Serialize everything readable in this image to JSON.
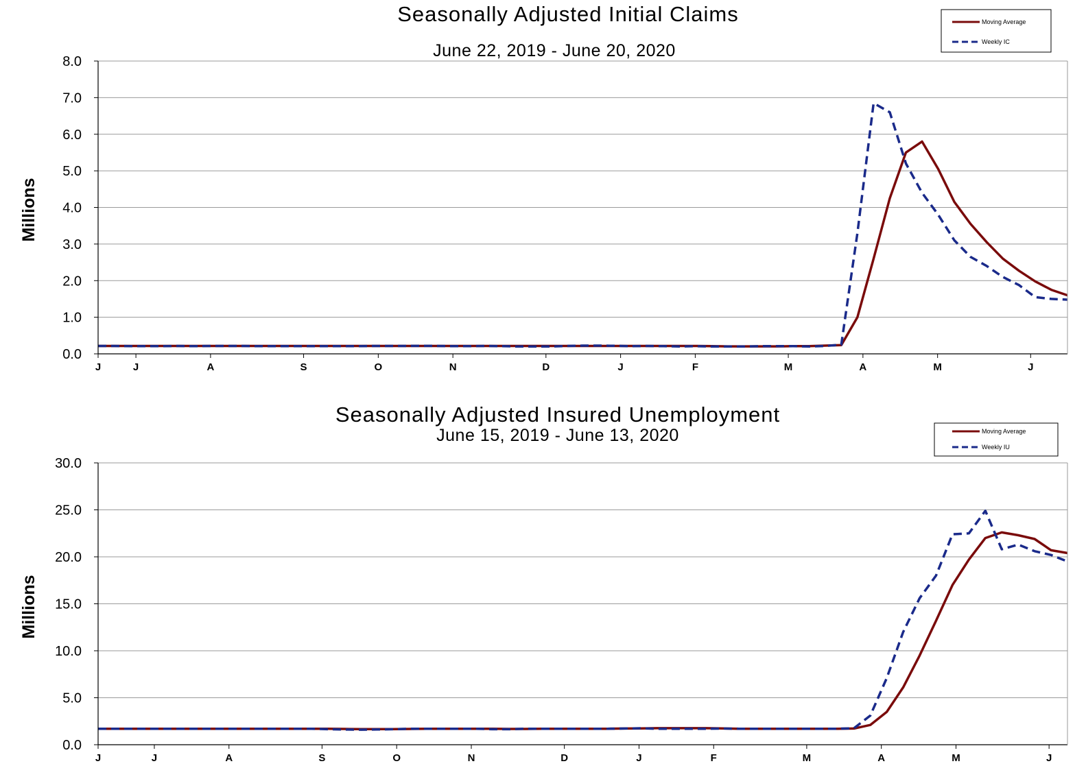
{
  "colors": {
    "moving_average": "#7a0b0b",
    "weekly": "#1a2a8a",
    "grid": "#9a9a9a"
  },
  "chart_data": [
    {
      "type": "line",
      "title": "Seasonally Adjusted Initial Claims",
      "subtitle": "June 22, 2019 - June 20, 2020",
      "ylabel": "Millions",
      "ylim": [
        0,
        8
      ],
      "yticks": [
        "0.0",
        "1.0",
        "2.0",
        "3.0",
        "4.0",
        "5.0",
        "6.0",
        "7.0",
        "8.0"
      ],
      "xtick_labels": [
        "J",
        "J",
        "A",
        "S",
        "O",
        "N",
        "D",
        "J",
        "F",
        "M",
        "A",
        "M",
        "J"
      ],
      "grid": true,
      "legend_position": "top-right",
      "series": [
        {
          "name": "Moving Average",
          "style": "solid",
          "values": [
            0.215,
            0.215,
            0.215,
            0.215,
            0.215,
            0.215,
            0.215,
            0.215,
            0.215,
            0.215,
            0.215,
            0.215,
            0.215,
            0.215,
            0.215,
            0.215,
            0.215,
            0.215,
            0.215,
            0.215,
            0.215,
            0.215,
            0.215,
            0.215,
            0.215,
            0.215,
            0.215,
            0.215,
            0.215,
            0.215,
            0.215,
            0.215,
            0.215,
            0.215,
            0.215,
            0.215,
            0.215,
            0.215,
            0.21,
            0.205,
            0.205,
            0.205,
            0.205,
            0.21,
            0.21,
            0.225,
            0.24,
            1.0,
            2.6,
            4.25,
            5.5,
            5.8,
            5.05,
            4.15,
            3.55,
            3.05,
            2.6,
            2.27,
            1.98,
            1.75,
            1.6
          ]
        },
        {
          "name": "Weekly IC",
          "style": "dashed",
          "values": [
            0.215,
            0.215,
            0.21,
            0.21,
            0.21,
            0.215,
            0.21,
            0.215,
            0.215,
            0.215,
            0.21,
            0.21,
            0.21,
            0.21,
            0.21,
            0.21,
            0.21,
            0.215,
            0.215,
            0.215,
            0.22,
            0.215,
            0.21,
            0.21,
            0.215,
            0.21,
            0.2,
            0.2,
            0.2,
            0.215,
            0.225,
            0.225,
            0.22,
            0.21,
            0.215,
            0.21,
            0.2,
            0.21,
            0.2,
            0.2,
            0.2,
            0.21,
            0.21,
            0.21,
            0.2,
            0.215,
            0.25,
            3.3,
            6.85,
            6.6,
            5.2,
            4.4,
            3.8,
            3.1,
            2.65,
            2.4,
            2.1,
            1.88,
            1.55,
            1.5,
            1.48
          ]
        }
      ]
    },
    {
      "type": "line",
      "title": "Seasonally Adjusted Insured Unemployment",
      "subtitle": "June 15, 2019 - June 13, 2020",
      "ylabel": "Millions",
      "ylim": [
        0,
        30
      ],
      "yticks": [
        "0.0",
        "5.0",
        "10.0",
        "15.0",
        "20.0",
        "25.0",
        "30.0"
      ],
      "xtick_labels": [
        "J",
        "J",
        "A",
        "S",
        "O",
        "N",
        "D",
        "J",
        "F",
        "M",
        "A",
        "M",
        "J"
      ],
      "grid": true,
      "legend_position": "top-right",
      "series": [
        {
          "name": "Moving Average",
          "style": "solid",
          "values": [
            1.7,
            1.7,
            1.7,
            1.7,
            1.7,
            1.7,
            1.7,
            1.7,
            1.7,
            1.7,
            1.7,
            1.7,
            1.7,
            1.7,
            1.7,
            1.68,
            1.66,
            1.66,
            1.66,
            1.68,
            1.7,
            1.7,
            1.7,
            1.7,
            1.7,
            1.68,
            1.68,
            1.7,
            1.7,
            1.7,
            1.7,
            1.7,
            1.72,
            1.74,
            1.76,
            1.76,
            1.76,
            1.76,
            1.74,
            1.7,
            1.7,
            1.7,
            1.7,
            1.7,
            1.7,
            1.7,
            1.72,
            2.1,
            3.5,
            6.1,
            9.5,
            13.2,
            17.0,
            19.7,
            22.0,
            22.6,
            22.3,
            21.9,
            20.7,
            20.4
          ]
        },
        {
          "name": "Weekly IU",
          "style": "dashed",
          "values": [
            1.7,
            1.7,
            1.7,
            1.7,
            1.7,
            1.7,
            1.7,
            1.7,
            1.7,
            1.7,
            1.7,
            1.7,
            1.7,
            1.7,
            1.65,
            1.62,
            1.6,
            1.62,
            1.65,
            1.7,
            1.7,
            1.7,
            1.7,
            1.7,
            1.65,
            1.65,
            1.7,
            1.7,
            1.7,
            1.7,
            1.7,
            1.7,
            1.72,
            1.75,
            1.7,
            1.7,
            1.7,
            1.7,
            1.72,
            1.7,
            1.7,
            1.7,
            1.7,
            1.7,
            1.7,
            1.7,
            1.75,
            3.1,
            7.1,
            12.0,
            15.6,
            18.0,
            22.4,
            22.5,
            24.9,
            20.8,
            21.3,
            20.6,
            20.2,
            19.5
          ]
        }
      ]
    }
  ]
}
